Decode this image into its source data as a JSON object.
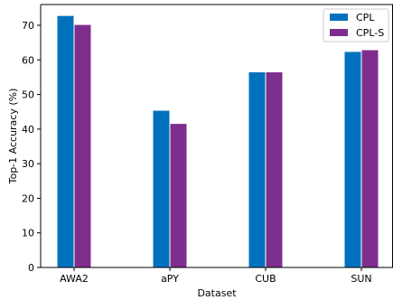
{
  "chart_data": {
    "type": "bar",
    "title": "",
    "xlabel": "Dataset",
    "ylabel": "Top-1 Accuracy (%)",
    "categories": [
      "AWA2",
      "aPY",
      "CUB",
      "SUN"
    ],
    "series": [
      {
        "name": "CPL",
        "values": [
          72.7,
          45.3,
          56.4,
          62.3
        ],
        "color": "#0072bd"
      },
      {
        "name": "CPL-S",
        "values": [
          70.1,
          41.5,
          56.4,
          62.8
        ],
        "color": "#7e2f8e"
      }
    ],
    "ylim": [
      0,
      76
    ],
    "yticks": [
      0,
      10,
      20,
      30,
      40,
      50,
      60,
      70
    ],
    "grid": false,
    "legend_position": "top-right"
  }
}
